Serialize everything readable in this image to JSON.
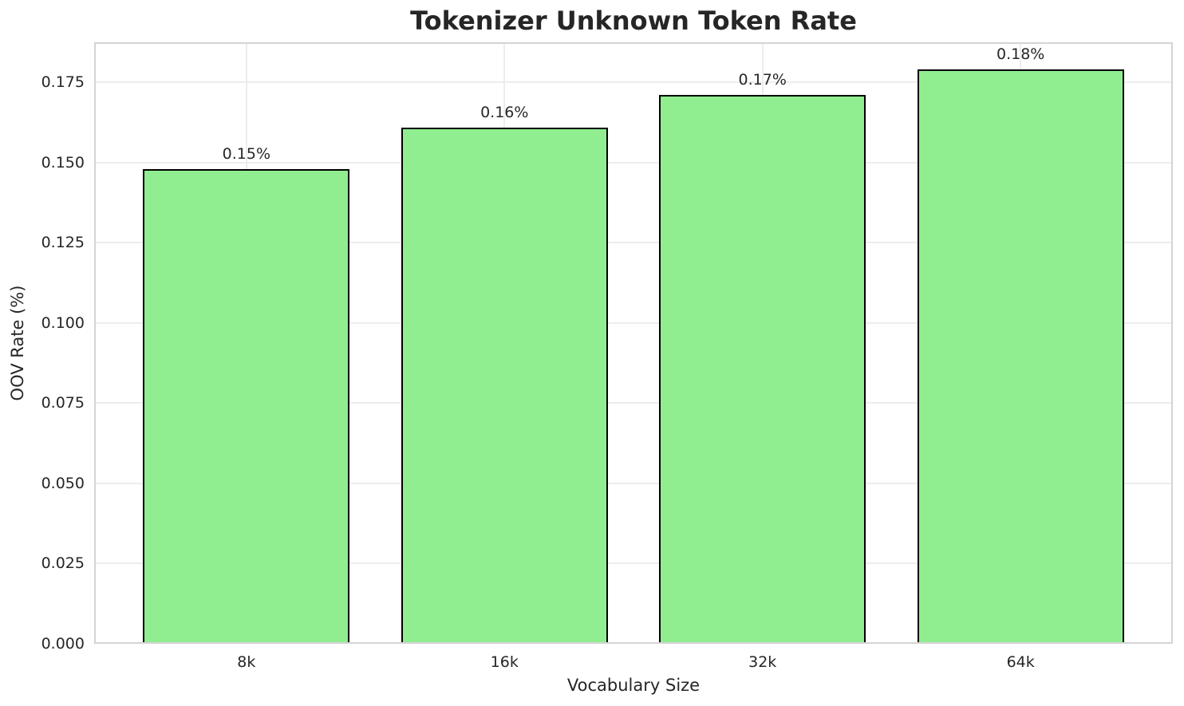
{
  "chart_data": {
    "type": "bar",
    "title": "Tokenizer Unknown Token Rate",
    "xlabel": "Vocabulary Size",
    "ylabel": "OOV Rate (%)",
    "categories": [
      "8k",
      "16k",
      "32k",
      "64k"
    ],
    "values": [
      0.148,
      0.161,
      0.171,
      0.179
    ],
    "bar_labels": [
      "0.15%",
      "0.16%",
      "0.17%",
      "0.18%"
    ],
    "ylim": [
      0,
      0.1875
    ],
    "yticks": [
      {
        "value": 0.0,
        "label": "0.000"
      },
      {
        "value": 0.025,
        "label": "0.025"
      },
      {
        "value": 0.05,
        "label": "0.050"
      },
      {
        "value": 0.075,
        "label": "0.075"
      },
      {
        "value": 0.1,
        "label": "0.100"
      },
      {
        "value": 0.125,
        "label": "0.125"
      },
      {
        "value": 0.15,
        "label": "0.150"
      },
      {
        "value": 0.175,
        "label": "0.175"
      }
    ],
    "grid": true,
    "legend": null,
    "colors": {
      "bar_fill": "#90EE90",
      "bar_edge": "#000000",
      "grid": "#ededed",
      "spine": "#d4d4d4",
      "text": "#262626"
    }
  }
}
